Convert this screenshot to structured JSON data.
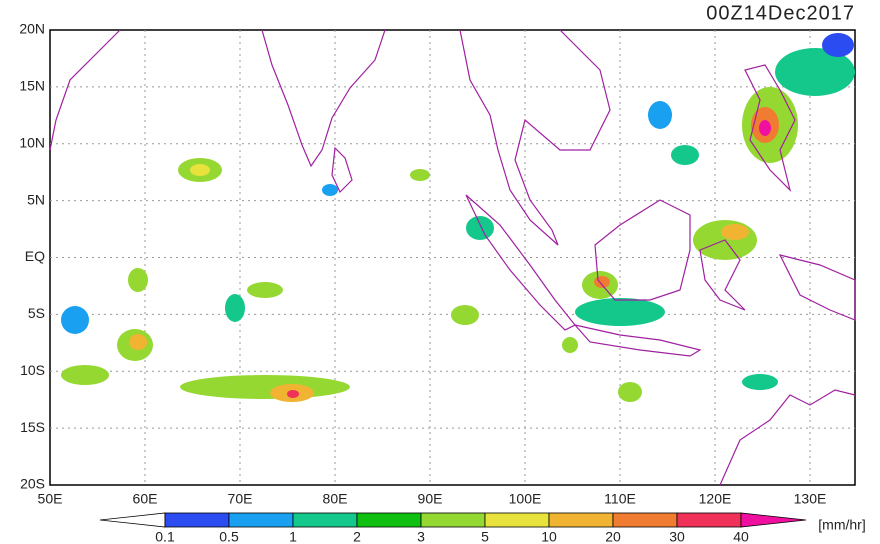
{
  "map": {
    "title": "00Z14Dec2017",
    "lat_labels": [
      "20N",
      "15N",
      "10N",
      "5N",
      "EQ",
      "5S",
      "10S",
      "15S",
      "20S"
    ],
    "lon_labels": [
      "50E",
      "60E",
      "70E",
      "80E",
      "90E",
      "100E",
      "110E",
      "120E",
      "130E"
    ],
    "coastline_color": "#a020a0"
  },
  "colorbar": {
    "labels": [
      0.1,
      0.5,
      1,
      2,
      3,
      5,
      10,
      20,
      30,
      40
    ],
    "colors": [
      "#ffffff",
      "#2a4cf0",
      "#1aa0f0",
      "#14c88c",
      "#10c010",
      "#96d832",
      "#e8e23c",
      "#f0b432",
      "#f07c32",
      "#f0325a",
      "#f010a0"
    ],
    "unit": "[mm/hr]"
  }
}
